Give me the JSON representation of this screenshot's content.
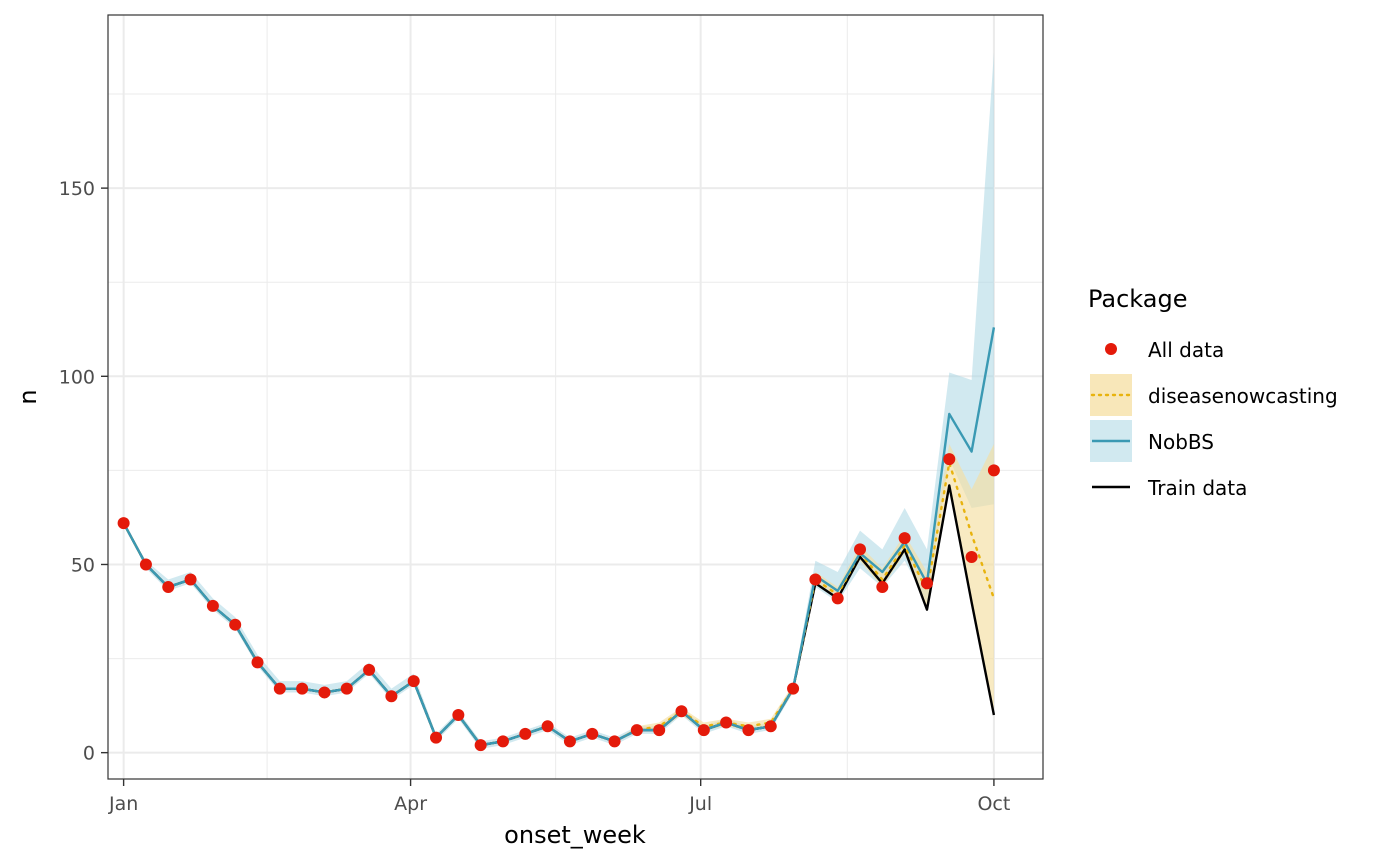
{
  "colors": {
    "all_data": "#E41A0A",
    "diseasenowcasting": "#E8B30E",
    "diseasenowcasting_band": "#F5DFA1",
    "nobbs": "#3A99B3",
    "nobbs_band": "#ABD7E3",
    "train": "#000000",
    "grid": "#EBEBEB",
    "axis_text": "#4D4D4D"
  },
  "chart_data": {
    "type": "line",
    "xlabel": "onset_week",
    "ylabel": "n",
    "x_unit": "week_index",
    "xlim": [
      -0.7,
      41.2
    ],
    "ylim": [
      -7,
      196
    ],
    "x_ticks": [
      {
        "label": "Jan",
        "week": 0
      },
      {
        "label": "Apr",
        "week": 12.86
      },
      {
        "label": "Jul",
        "week": 25.86
      },
      {
        "label": "Oct",
        "week": 39
      }
    ],
    "y_ticks": [
      0,
      50,
      100,
      150
    ],
    "legend": {
      "title": "Package",
      "position": "right",
      "entries": [
        "All data",
        "diseasenowcasting",
        "NobBS",
        "Train data"
      ]
    },
    "series": [
      {
        "name": "All data",
        "kind": "points",
        "x": [
          0,
          1,
          2,
          3,
          4,
          5,
          6,
          7,
          8,
          9,
          10,
          11,
          12,
          13,
          14,
          15,
          16,
          17,
          18,
          19,
          20,
          21,
          22,
          23,
          24,
          25,
          26,
          27,
          28,
          29,
          30,
          31,
          32,
          33,
          34,
          35,
          36,
          37,
          38,
          39
        ],
        "values": [
          61,
          50,
          44,
          46,
          39,
          34,
          24,
          17,
          17,
          16,
          17,
          22,
          15,
          19,
          4,
          10,
          2,
          3,
          5,
          7,
          3,
          5,
          3,
          6,
          6,
          11,
          6,
          8,
          6,
          7,
          17,
          46,
          41,
          54,
          44,
          57,
          45,
          78,
          52,
          75
        ]
      },
      {
        "name": "Train data",
        "kind": "line",
        "x": [
          0,
          1,
          2,
          3,
          4,
          5,
          6,
          7,
          8,
          9,
          10,
          11,
          12,
          13,
          14,
          15,
          16,
          17,
          18,
          19,
          20,
          21,
          22,
          23,
          24,
          25,
          26,
          27,
          28,
          29,
          30,
          31,
          32,
          33,
          34,
          35,
          36,
          37,
          38,
          39
        ],
        "values": [
          61,
          50,
          44,
          46,
          39,
          34,
          24,
          17,
          17,
          16,
          17,
          22,
          15,
          19,
          4,
          10,
          2,
          3,
          5,
          7,
          3,
          5,
          3,
          6,
          6,
          11,
          6,
          8,
          6,
          7,
          17,
          45,
          41,
          52,
          45,
          54,
          38,
          71,
          40,
          10
        ]
      },
      {
        "name": "NobBS",
        "kind": "line_band",
        "x": [
          0,
          1,
          2,
          3,
          4,
          5,
          6,
          7,
          8,
          9,
          10,
          11,
          12,
          13,
          14,
          15,
          16,
          17,
          18,
          19,
          20,
          21,
          22,
          23,
          24,
          25,
          26,
          27,
          28,
          29,
          30,
          31,
          32,
          33,
          34,
          35,
          36,
          37,
          38,
          39
        ],
        "values": [
          61,
          50,
          44,
          46,
          39,
          34,
          24,
          17,
          17,
          16,
          17,
          22,
          15,
          19,
          4,
          10,
          2,
          3,
          5,
          7,
          3,
          5,
          3,
          6,
          6,
          11,
          6,
          8,
          6,
          7,
          17,
          47,
          43,
          53,
          48,
          56,
          45,
          90,
          80,
          113
        ],
        "lower": [
          61,
          49,
          43,
          45,
          38,
          33,
          23,
          16,
          16,
          15,
          16,
          21,
          14,
          18,
          3,
          9,
          1,
          2,
          4,
          6,
          2,
          4,
          2,
          5,
          5,
          10,
          5,
          7,
          5,
          6,
          16,
          44,
          40,
          49,
          44,
          51,
          40,
          78,
          65,
          66
        ],
        "upper": [
          61,
          51,
          46,
          48,
          41,
          36,
          26,
          19,
          19,
          18,
          19,
          24,
          17,
          21,
          5,
          11,
          3,
          4,
          6,
          8,
          4,
          6,
          4,
          7,
          7,
          12,
          7,
          9,
          7,
          8,
          18,
          51,
          48,
          59,
          54,
          65,
          54,
          101,
          99,
          186
        ]
      },
      {
        "name": "diseasenowcasting",
        "kind": "line_band",
        "dashed": true,
        "x": [
          0,
          1,
          2,
          3,
          4,
          5,
          6,
          7,
          8,
          9,
          10,
          11,
          12,
          13,
          14,
          15,
          16,
          17,
          18,
          19,
          20,
          21,
          22,
          23,
          24,
          25,
          26,
          27,
          28,
          29,
          30,
          31,
          32,
          33,
          34,
          35,
          36,
          37,
          38,
          39
        ],
        "values": [
          61,
          50,
          44,
          46,
          39,
          34,
          24,
          17,
          17,
          16,
          17,
          22,
          15,
          19,
          4,
          10,
          2,
          3,
          5,
          7,
          3,
          5,
          3,
          6,
          7,
          11,
          7,
          8,
          7,
          8,
          17,
          46,
          42,
          53,
          46,
          55,
          43,
          77,
          58,
          41
        ],
        "lower": [
          61,
          50,
          44,
          46,
          39,
          34,
          24,
          17,
          17,
          16,
          17,
          22,
          15,
          19,
          4,
          10,
          2,
          3,
          5,
          7,
          3,
          5,
          3,
          6,
          6,
          10,
          6,
          7,
          6,
          7,
          16,
          45,
          41,
          51,
          44,
          53,
          38,
          70,
          40,
          10
        ],
        "upper": [
          61,
          50,
          44,
          46,
          39,
          34,
          24,
          17,
          17,
          16,
          17,
          22,
          15,
          19,
          4,
          10,
          2,
          3,
          5,
          7,
          3,
          5,
          3,
          7,
          8,
          12,
          8,
          9,
          8,
          9,
          18,
          48,
          44,
          55,
          49,
          58,
          48,
          82,
          70,
          82
        ]
      }
    ]
  }
}
